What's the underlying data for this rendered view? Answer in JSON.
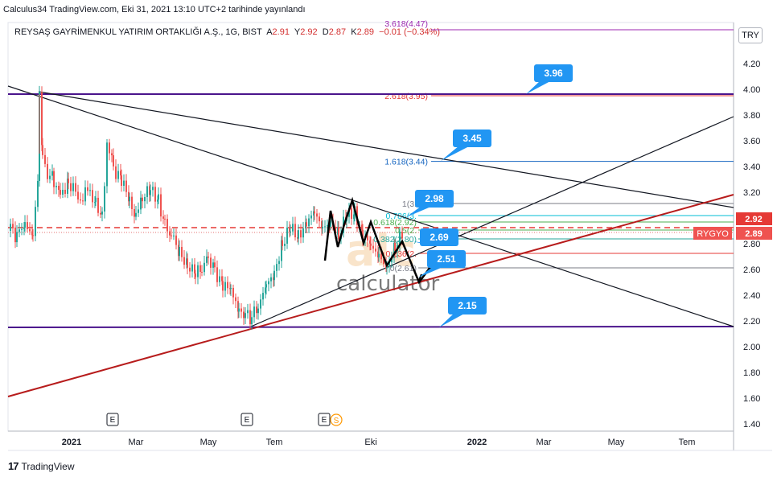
{
  "header": {
    "publish_line": "Calculus34 TradingView.com, Eki 31, 2021 13:10 UTC+2 tarihinde yayınlandı"
  },
  "symbol": {
    "name": "REYSAŞ GAYRİMENKUL YATIRIM ORTAKLIĞI A.Ş., 1G, BIST",
    "o_label": "A",
    "o_val": "2.91",
    "h_label": "Y",
    "h_val": "2.92",
    "l_label": "D",
    "l_val": "2.87",
    "c_label": "K",
    "c_val": "2.89",
    "change": "−0.01 (−0.34%)",
    "currency": "TRY",
    "ticker_label": "RYGYO"
  },
  "footer": {
    "brand": "TradingView"
  },
  "watermark": "calculator",
  "colors": {
    "candle_up": "#26a69a",
    "candle_down": "#ef5350",
    "support_line": "#4a148c",
    "trend_red": "#b71c1c",
    "callout": "#2196f3",
    "price_tag": "#e53935"
  },
  "chart_data": {
    "type": "candlestick",
    "y_ticks": [
      "4.20",
      "4.00",
      "3.80",
      "3.60",
      "3.40",
      "3.20",
      "3.00",
      "2.80",
      "2.60",
      "2.40",
      "2.20",
      "2.00",
      "1.80",
      "1.60",
      "1.40"
    ],
    "x_ticks": [
      "2021",
      "Mar",
      "May",
      "Tem",
      "Eki",
      "2022",
      "Mar",
      "May",
      "Tem"
    ],
    "ylim": [
      1.35,
      4.25
    ],
    "current_price_tags": [
      "2.92",
      "2.89"
    ],
    "callouts": [
      "3.96",
      "3.45",
      "2.98",
      "2.69",
      "2.51",
      "2.15"
    ],
    "fib_levels_upper": [
      {
        "label": "3.618(4.47)",
        "value": 4.47
      },
      {
        "label": "2.618(3.95)",
        "value": 3.95
      },
      {
        "label": "1.618(3.44)",
        "value": 3.44
      }
    ],
    "fib_levels_lower": [
      {
        "label": "1(3.",
        "value": 3.11
      },
      {
        "label": "0.786(3.",
        "value": 3.0
      },
      {
        "label": "0.618(2.92)",
        "value": 2.92
      },
      {
        "label": "0.5(2.",
        "value": 2.86
      },
      {
        "label": "0.382(2.80)",
        "value": 2.8
      },
      {
        "label": "0.236(2.",
        "value": 2.72
      },
      {
        "label": "0(2.61)",
        "value": 2.61
      }
    ],
    "horizontal_levels": [
      3.96,
      2.15
    ],
    "events": [
      "E",
      "E",
      "E",
      "S"
    ]
  }
}
